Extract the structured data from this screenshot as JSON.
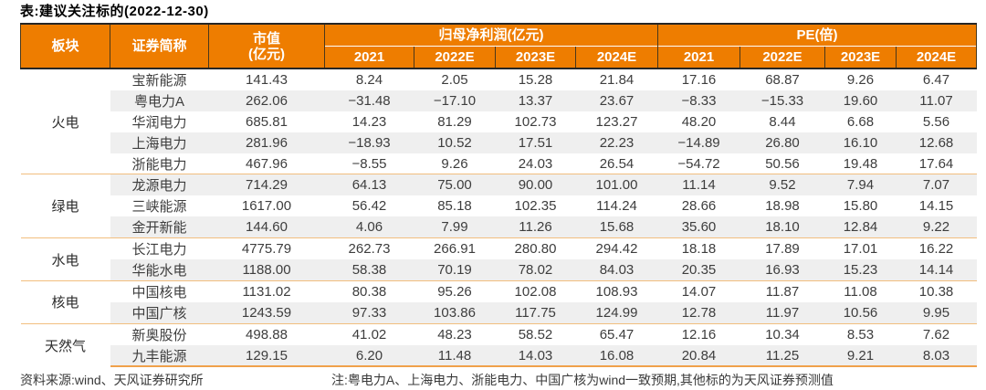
{
  "title": "表:建议关注标的(2022-12-30)",
  "colors": {
    "header_orange": "#ee7d00",
    "stripe_gray": "#efefef",
    "section_line": "#f2be7e",
    "bottom_line": "#f0a14b",
    "header_border_dark": "#262626"
  },
  "chart_data": {
    "type": "table",
    "title": "表:建议关注标的(2022-12-30)",
    "group_headers": [
      "归母净利润(亿元)",
      "PE(倍)"
    ],
    "years": [
      "2021",
      "2022E",
      "2023E",
      "2024E"
    ]
  },
  "table": {
    "header": {
      "sector": "板块",
      "name": "证券简称",
      "mcap_line1": "市值",
      "mcap_line2": "(亿元)",
      "np_group": "归母净利润(亿元)",
      "pe_group": "PE(倍)",
      "years": [
        "2021",
        "2022E",
        "2023E",
        "2024E"
      ]
    },
    "sections": [
      {
        "sector": "火电",
        "rows": [
          {
            "name": "宝新能源",
            "mcap": "141.43",
            "np": [
              "8.24",
              "2.05",
              "15.28",
              "21.84"
            ],
            "pe": [
              "17.16",
              "68.87",
              "9.26",
              "6.47"
            ]
          },
          {
            "name": "粤电力A",
            "mcap": "262.06",
            "np": [
              "−31.48",
              "−17.10",
              "13.37",
              "23.67"
            ],
            "pe": [
              "−8.33",
              "−15.33",
              "19.60",
              "11.07"
            ]
          },
          {
            "name": "华润电力",
            "mcap": "685.81",
            "np": [
              "14.23",
              "81.29",
              "102.73",
              "123.27"
            ],
            "pe": [
              "48.20",
              "8.44",
              "6.68",
              "5.56"
            ]
          },
          {
            "name": "上海电力",
            "mcap": "281.96",
            "np": [
              "−18.93",
              "10.52",
              "17.51",
              "22.23"
            ],
            "pe": [
              "−14.89",
              "26.80",
              "16.10",
              "12.68"
            ]
          },
          {
            "name": "浙能电力",
            "mcap": "467.96",
            "np": [
              "−8.55",
              "9.26",
              "24.03",
              "26.54"
            ],
            "pe": [
              "−54.72",
              "50.56",
              "19.48",
              "17.64"
            ]
          }
        ]
      },
      {
        "sector": "绿电",
        "rows": [
          {
            "name": "龙源电力",
            "mcap": "714.29",
            "np": [
              "64.13",
              "75.00",
              "90.00",
              "101.00"
            ],
            "pe": [
              "11.14",
              "9.52",
              "7.94",
              "7.07"
            ]
          },
          {
            "name": "三峡能源",
            "mcap": "1617.00",
            "np": [
              "56.42",
              "85.18",
              "102.35",
              "114.24"
            ],
            "pe": [
              "28.66",
              "18.98",
              "15.80",
              "14.15"
            ]
          },
          {
            "name": "金开新能",
            "mcap": "144.60",
            "np": [
              "4.06",
              "7.99",
              "11.26",
              "15.68"
            ],
            "pe": [
              "35.60",
              "18.10",
              "12.84",
              "9.22"
            ]
          }
        ]
      },
      {
        "sector": "水电",
        "rows": [
          {
            "name": "长江电力",
            "mcap": "4775.79",
            "np": [
              "262.73",
              "266.91",
              "280.80",
              "294.42"
            ],
            "pe": [
              "18.18",
              "17.89",
              "17.01",
              "16.22"
            ]
          },
          {
            "name": "华能水电",
            "mcap": "1188.00",
            "np": [
              "58.38",
              "70.19",
              "78.02",
              "84.03"
            ],
            "pe": [
              "20.35",
              "16.93",
              "15.23",
              "14.14"
            ]
          }
        ]
      },
      {
        "sector": "核电",
        "rows": [
          {
            "name": "中国核电",
            "mcap": "1131.02",
            "np": [
              "80.38",
              "95.26",
              "102.08",
              "108.93"
            ],
            "pe": [
              "14.07",
              "11.87",
              "11.08",
              "10.38"
            ]
          },
          {
            "name": "中国广核",
            "mcap": "1243.59",
            "np": [
              "97.33",
              "103.86",
              "117.75",
              "124.99"
            ],
            "pe": [
              "12.78",
              "11.97",
              "10.56",
              "9.95"
            ]
          }
        ]
      },
      {
        "sector": "天然气",
        "rows": [
          {
            "name": "新奥股份",
            "mcap": "498.88",
            "np": [
              "41.02",
              "48.23",
              "58.52",
              "65.47"
            ],
            "pe": [
              "12.16",
              "10.34",
              "8.53",
              "7.62"
            ]
          },
          {
            "name": "九丰能源",
            "mcap": "129.15",
            "np": [
              "6.20",
              "11.48",
              "14.03",
              "16.08"
            ],
            "pe": [
              "20.84",
              "11.25",
              "9.21",
              "8.03"
            ]
          }
        ]
      }
    ]
  },
  "footer": {
    "source": "资料来源:wind、天风证券研究所",
    "note": "注:粤电力A、上海电力、浙能电力、中国广核为wind一致预期,其他标的为天风证券预测值"
  }
}
